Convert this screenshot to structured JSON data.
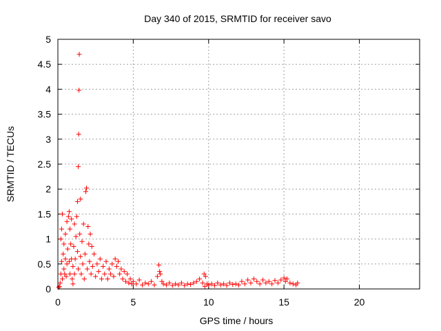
{
  "chart_data": {
    "type": "scatter",
    "title": "Day 340 of 2015, SRMTID for receiver savo",
    "xlabel": "GPS time / hours",
    "ylabel": "SRMTID / TECUs",
    "xlim": [
      0,
      24
    ],
    "ylim": [
      0,
      5
    ],
    "xticks": [
      0,
      5,
      10,
      15,
      20
    ],
    "yticks": [
      0,
      0.5,
      1,
      1.5,
      2,
      2.5,
      3,
      3.5,
      4,
      4.5,
      5
    ],
    "xtick_labels": [
      "0",
      "5",
      "10",
      "15",
      "20"
    ],
    "ytick_labels": [
      "0",
      "0.5",
      "1",
      "1.5",
      "2",
      "2.5",
      "3",
      "3.5",
      "4",
      "4.5",
      "5"
    ],
    "grid": true,
    "marker": "+",
    "color": "#ff0000",
    "series": [
      {
        "name": "SRMTID",
        "points": [
          [
            0.05,
            0.03
          ],
          [
            0.1,
            0.05
          ],
          [
            0.15,
            0.12
          ],
          [
            0.2,
            0.3
          ],
          [
            0.2,
            1.0
          ],
          [
            0.25,
            0.55
          ],
          [
            0.25,
            1.2
          ],
          [
            0.3,
            0.2
          ],
          [
            0.3,
            1.5
          ],
          [
            0.35,
            0.7
          ],
          [
            0.4,
            0.4
          ],
          [
            0.4,
            0.9
          ],
          [
            0.45,
            0.3
          ],
          [
            0.5,
            0.6
          ],
          [
            0.5,
            1.1
          ],
          [
            0.55,
            0.25
          ],
          [
            0.6,
            0.5
          ],
          [
            0.6,
            1.35
          ],
          [
            0.65,
            0.8
          ],
          [
            0.7,
            1.45
          ],
          [
            0.75,
            0.55
          ],
          [
            0.75,
            1.55
          ],
          [
            0.8,
            0.3
          ],
          [
            0.8,
            1.2
          ],
          [
            0.85,
            0.9
          ],
          [
            0.9,
            1.4
          ],
          [
            0.9,
            0.6
          ],
          [
            0.95,
            0.2
          ],
          [
            1.0,
            0.1
          ],
          [
            1.0,
            0.45
          ],
          [
            1.05,
            0.85
          ],
          [
            1.1,
            1.3
          ],
          [
            1.1,
            0.3
          ],
          [
            1.15,
            0.6
          ],
          [
            1.2,
            1.05
          ],
          [
            1.25,
            1.45
          ],
          [
            1.3,
            0.75
          ],
          [
            1.3,
            1.75
          ],
          [
            1.35,
            0.4
          ],
          [
            1.35,
            2.45
          ],
          [
            1.38,
            3.1
          ],
          [
            1.4,
            3.98
          ],
          [
            1.42,
            4.7
          ],
          [
            1.45,
            1.1
          ],
          [
            1.5,
            0.65
          ],
          [
            1.5,
            1.8
          ],
          [
            1.55,
            0.3
          ],
          [
            1.6,
            0.95
          ],
          [
            1.65,
            0.5
          ],
          [
            1.7,
            1.3
          ],
          [
            1.75,
            0.2
          ],
          [
            1.8,
            0.7
          ],
          [
            1.85,
            1.95
          ],
          [
            1.9,
            2.02
          ],
          [
            1.95,
            0.4
          ],
          [
            2.0,
            1.25
          ],
          [
            2.05,
            0.9
          ],
          [
            2.1,
            0.55
          ],
          [
            2.15,
            1.1
          ],
          [
            2.2,
            0.3
          ],
          [
            2.25,
            0.85
          ],
          [
            2.3,
            0.45
          ],
          [
            2.4,
            0.7
          ],
          [
            2.5,
            0.25
          ],
          [
            2.6,
            0.5
          ],
          [
            2.7,
            0.35
          ],
          [
            2.8,
            0.6
          ],
          [
            2.9,
            0.2
          ],
          [
            3.0,
            0.45
          ],
          [
            3.1,
            0.3
          ],
          [
            3.2,
            0.55
          ],
          [
            3.3,
            0.2
          ],
          [
            3.4,
            0.4
          ],
          [
            3.5,
            0.3
          ],
          [
            3.6,
            0.5
          ],
          [
            3.7,
            0.25
          ],
          [
            3.8,
            0.6
          ],
          [
            3.9,
            0.45
          ],
          [
            4.0,
            0.55
          ],
          [
            4.1,
            0.3
          ],
          [
            4.2,
            0.4
          ],
          [
            4.3,
            0.2
          ],
          [
            4.4,
            0.35
          ],
          [
            4.5,
            0.15
          ],
          [
            4.6,
            0.3
          ],
          [
            4.7,
            0.12
          ],
          [
            4.8,
            0.2
          ],
          [
            4.9,
            0.1
          ],
          [
            5.0,
            0.15
          ],
          [
            5.2,
            0.1
          ],
          [
            5.4,
            0.18
          ],
          [
            5.6,
            0.08
          ],
          [
            5.8,
            0.12
          ],
          [
            6.0,
            0.1
          ],
          [
            6.2,
            0.15
          ],
          [
            6.4,
            0.08
          ],
          [
            6.6,
            0.25
          ],
          [
            6.7,
            0.48
          ],
          [
            6.75,
            0.35
          ],
          [
            6.8,
            0.3
          ],
          [
            6.9,
            0.15
          ],
          [
            7.0,
            0.1
          ],
          [
            7.2,
            0.08
          ],
          [
            7.4,
            0.12
          ],
          [
            7.6,
            0.07
          ],
          [
            7.8,
            0.1
          ],
          [
            8.0,
            0.08
          ],
          [
            8.2,
            0.12
          ],
          [
            8.4,
            0.07
          ],
          [
            8.6,
            0.1
          ],
          [
            8.8,
            0.09
          ],
          [
            9.0,
            0.12
          ],
          [
            9.2,
            0.15
          ],
          [
            9.4,
            0.2
          ],
          [
            9.6,
            0.12
          ],
          [
            9.7,
            0.3
          ],
          [
            9.75,
            0.05
          ],
          [
            9.8,
            0.25
          ],
          [
            9.9,
            0.1
          ],
          [
            10.0,
            0.08
          ],
          [
            10.2,
            0.1
          ],
          [
            10.4,
            0.07
          ],
          [
            10.6,
            0.12
          ],
          [
            10.8,
            0.08
          ],
          [
            11.0,
            0.1
          ],
          [
            11.2,
            0.07
          ],
          [
            11.4,
            0.12
          ],
          [
            11.6,
            0.09
          ],
          [
            11.8,
            0.1
          ],
          [
            12.0,
            0.08
          ],
          [
            12.2,
            0.15
          ],
          [
            12.4,
            0.1
          ],
          [
            12.6,
            0.18
          ],
          [
            12.8,
            0.12
          ],
          [
            13.0,
            0.2
          ],
          [
            13.2,
            0.15
          ],
          [
            13.4,
            0.1
          ],
          [
            13.6,
            0.18
          ],
          [
            13.8,
            0.12
          ],
          [
            14.0,
            0.15
          ],
          [
            14.2,
            0.1
          ],
          [
            14.4,
            0.17
          ],
          [
            14.6,
            0.12
          ],
          [
            14.8,
            0.18
          ],
          [
            15.0,
            0.22
          ],
          [
            15.1,
            0.15
          ],
          [
            15.2,
            0.2
          ],
          [
            15.4,
            0.12
          ],
          [
            15.6,
            0.1
          ],
          [
            15.8,
            0.08
          ],
          [
            15.9,
            0.12
          ]
        ]
      }
    ]
  }
}
